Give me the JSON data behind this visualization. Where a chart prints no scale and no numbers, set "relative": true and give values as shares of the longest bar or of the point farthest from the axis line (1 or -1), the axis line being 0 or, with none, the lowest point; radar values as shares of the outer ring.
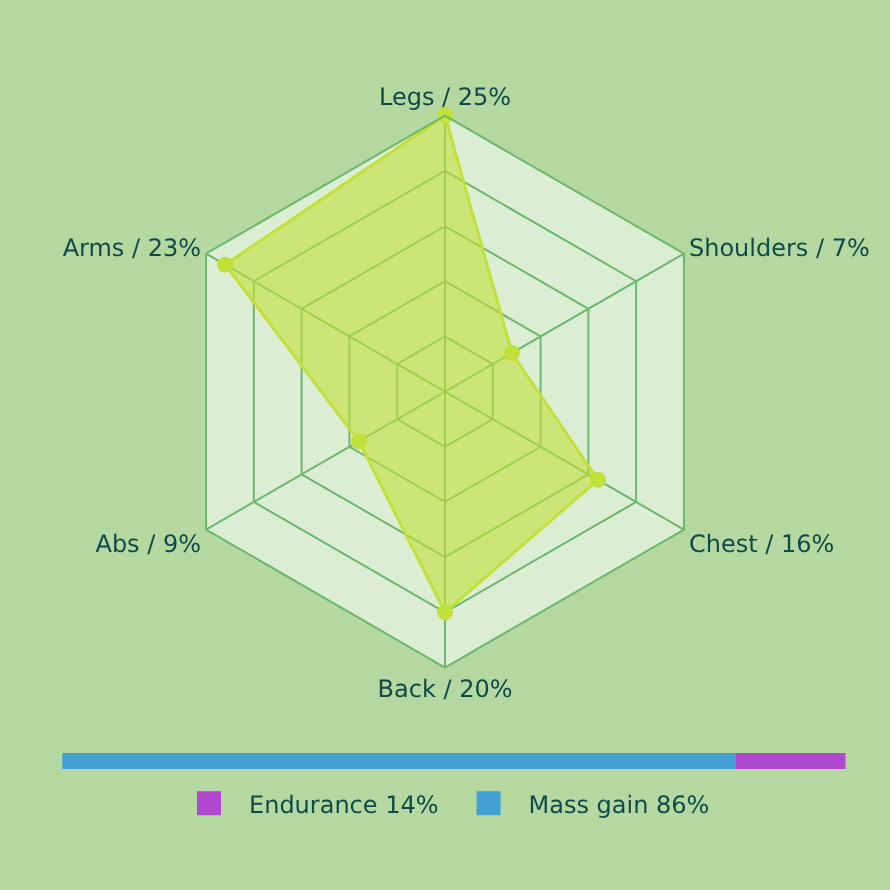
{
  "chart_data": [
    {
      "type": "radar",
      "relative": true,
      "categories": [
        "Legs / 25%",
        "Shoulders / 7%",
        "Chest / 16%",
        "Back / 20%",
        "Abs / 9%",
        "Arms / 23%"
      ],
      "series": [
        {
          "color": "#c2e03a",
          "values": [
            1,
            0.28,
            0.64,
            0.8,
            0.36,
            0.92
          ]
        }
      ],
      "marker": "circle",
      "grid": true
    },
    {
      "type": "bar",
      "orientation": "horizontal",
      "stacked": true,
      "relative": true,
      "categories": [
        null
      ],
      "legend": "bottom",
      "series": [
        {
          "name": "Mass gain 86%",
          "color": "#43a0d4",
          "values": [
            0.86
          ]
        },
        {
          "name": "Endurance 14%",
          "color": "#b048d0",
          "values": [
            0.14
          ]
        }
      ]
    }
  ]
}
